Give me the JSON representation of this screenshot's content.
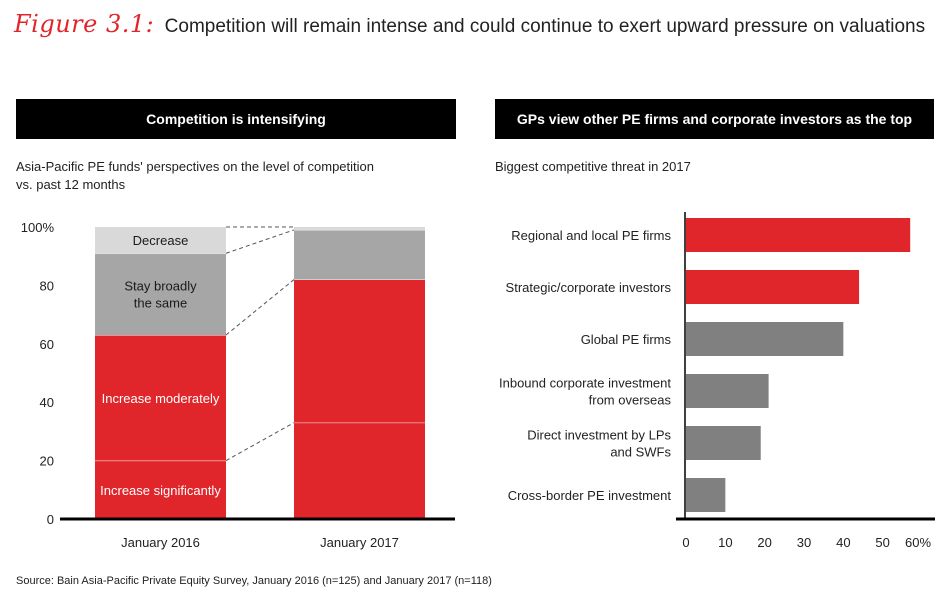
{
  "figure": {
    "label": "Figure 3.1:",
    "title": "Competition will remain intense and could continue to exert upward pressure on valuations"
  },
  "left_panel": {
    "header": "Competition is intensifying",
    "subtitle_line1": "Asia-Pacific PE funds' perspectives on the level of competition",
    "subtitle_line2": "vs. past 12 months"
  },
  "right_panel": {
    "header": "GPs view other PE firms and corporate investors as the top threats",
    "subtitle": "Biggest competitive threat in 2017"
  },
  "source": "Source: Bain Asia-Pacific Private Equity Survey, January 2016 (n=125) and January 2017 (n=118)",
  "colors": {
    "red": "#e1262b",
    "gray": "#808080",
    "lightgray": "#d9d9d9",
    "black": "#000000"
  },
  "chart_data": [
    {
      "type": "bar",
      "stacked": true,
      "categories": [
        "January 2016",
        "January 2017"
      ],
      "ylim": [
        0,
        100
      ],
      "yticks": [
        "0",
        "20",
        "40",
        "60",
        "80",
        "100%"
      ],
      "series": [
        {
          "name": "Increase significantly",
          "label": "Increase significantly",
          "values": [
            20,
            33
          ],
          "color": "#e1262b"
        },
        {
          "name": "Increase moderately",
          "label": "Increase moderately",
          "values": [
            43,
            49
          ],
          "color": "#e1262b"
        },
        {
          "name": "Stay broadly the same",
          "label_lines": [
            "Stay broadly",
            "the same"
          ],
          "values": [
            28,
            17
          ],
          "color": "#a6a6a6"
        },
        {
          "name": "Decrease",
          "label": "Decrease",
          "values": [
            9,
            1
          ],
          "color": "#d9d9d9"
        }
      ]
    },
    {
      "type": "bar",
      "orientation": "horizontal",
      "title": "Biggest competitive threat in 2017",
      "xlim": [
        0,
        60
      ],
      "xticks": [
        "0",
        "10",
        "20",
        "30",
        "40",
        "50",
        "60%"
      ],
      "categories": [
        {
          "lines": [
            "Regional and local PE firms"
          ],
          "value": 57,
          "color": "#e1262b"
        },
        {
          "lines": [
            "Strategic/corporate investors"
          ],
          "value": 44,
          "color": "#e1262b"
        },
        {
          "lines": [
            "Global PE firms"
          ],
          "value": 40,
          "color": "#808080"
        },
        {
          "lines": [
            "Inbound corporate investment",
            "from overseas"
          ],
          "value": 21,
          "color": "#808080"
        },
        {
          "lines": [
            "Direct investment by LPs",
            "and SWFs"
          ],
          "value": 19,
          "color": "#808080"
        },
        {
          "lines": [
            "Cross-border PE investment"
          ],
          "value": 10,
          "color": "#808080"
        }
      ]
    }
  ]
}
